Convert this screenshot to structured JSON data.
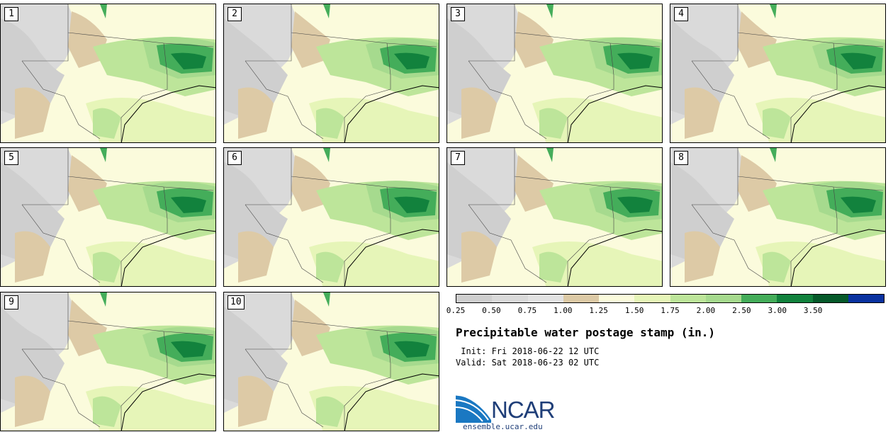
{
  "panels": [
    {
      "label": "1"
    },
    {
      "label": "2"
    },
    {
      "label": "3"
    },
    {
      "label": "4"
    },
    {
      "label": "5"
    },
    {
      "label": "6"
    },
    {
      "label": "7"
    },
    {
      "label": "8"
    },
    {
      "label": "9"
    },
    {
      "label": "10"
    }
  ],
  "colorbar": {
    "ticks": [
      "0.25",
      "0.50",
      "0.75",
      "1.00",
      "1.25",
      "1.50",
      "1.75",
      "2.00",
      "2.50",
      "3.00",
      "3.50"
    ],
    "colors": [
      "#cfcfcf",
      "#dadada",
      "#e3e3e3",
      "#ddcaa6",
      "#fbfbdc",
      "#e6f5b8",
      "#bde59a",
      "#a6da8e",
      "#44ad5a",
      "#12823d",
      "#06592a",
      "#0a32a0"
    ]
  },
  "title": "Precipitable water postage stamp (in.)",
  "init_line": " Init: Fri 2018-06-22 12 UTC",
  "valid_line": "Valid: Sat 2018-06-23 02 UTC",
  "logo": {
    "name": "NCAR",
    "url": "ensemble.ucar.edu"
  }
}
